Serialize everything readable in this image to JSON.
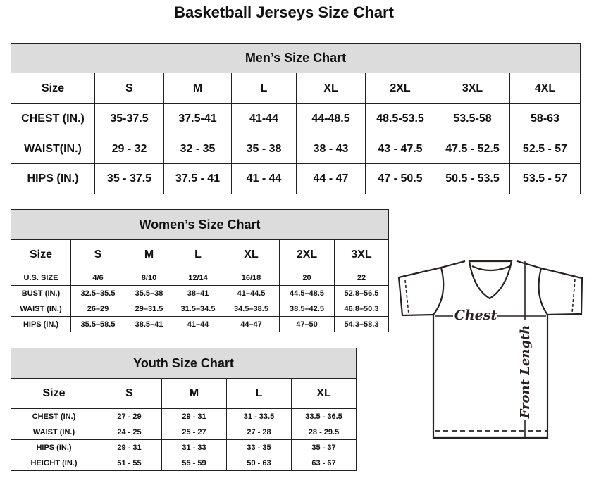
{
  "title": "Basketball Jerseys Size Chart",
  "men": {
    "caption": "Men’s Size Chart",
    "header": [
      "Size",
      "S",
      "M",
      "L",
      "XL",
      "2XL",
      "3XL",
      "4XL"
    ],
    "rows": [
      [
        "CHEST (IN.)",
        "35-37.5",
        "37.5-41",
        "41-44",
        "44-48.5",
        "48.5-53.5",
        "53.5-58",
        "58-63"
      ],
      [
        "WAIST(IN.)",
        "29 - 32",
        "32 - 35",
        "35 - 38",
        "38 - 43",
        "43 - 47.5",
        "47.5 - 52.5",
        "52.5 - 57"
      ],
      [
        "HIPS (IN.)",
        "35 - 37.5",
        "37.5 - 41",
        "41 - 44",
        "44 - 47",
        "47 - 50.5",
        "50.5 - 53.5",
        "53.5 - 57"
      ]
    ]
  },
  "women": {
    "caption": "Women’s Size Chart",
    "header": [
      "Size",
      "S",
      "M",
      "L",
      "XL",
      "2XL",
      "3XL"
    ],
    "rows": [
      [
        "U.S. SIZE",
        "4/6",
        "8/10",
        "12/14",
        "16/18",
        "20",
        "22"
      ],
      [
        "BUST (IN.)",
        "32.5–35.5",
        "35.5–38",
        "38–41",
        "41–44.5",
        "44.5–48.5",
        "52.8–56.5"
      ],
      [
        "WAIST (IN.)",
        "26–29",
        "29–31.5",
        "31.5–34.5",
        "34.5–38.5",
        "38.5–42.5",
        "46.8–50.3"
      ],
      [
        "HIPS (IN.)",
        "35.5–58.5",
        "38.5–41",
        "41–44",
        "44–47",
        "47–50",
        "54.3–58.3"
      ]
    ]
  },
  "youth": {
    "caption": "Youth Size Chart",
    "header": [
      "Size",
      "S",
      "M",
      "L",
      "XL"
    ],
    "rows": [
      [
        "CHEST (IN.)",
        "27 - 29",
        "29 - 31",
        "31 - 33.5",
        "33.5 - 36.5"
      ],
      [
        "WAIST (IN.)",
        "24 - 25",
        "25 - 27",
        "27 - 28",
        "28 - 29.5"
      ],
      [
        "HIPS (IN.)",
        "29 - 31",
        "31 - 33",
        "33 - 35",
        "35 - 37"
      ],
      [
        "HEIGHT (IN.)",
        "51 - 55",
        "55 - 59",
        "59 - 63",
        "63 - 67"
      ]
    ]
  },
  "diagram": {
    "chest_label": "Chest",
    "length_label": "Front Length"
  }
}
